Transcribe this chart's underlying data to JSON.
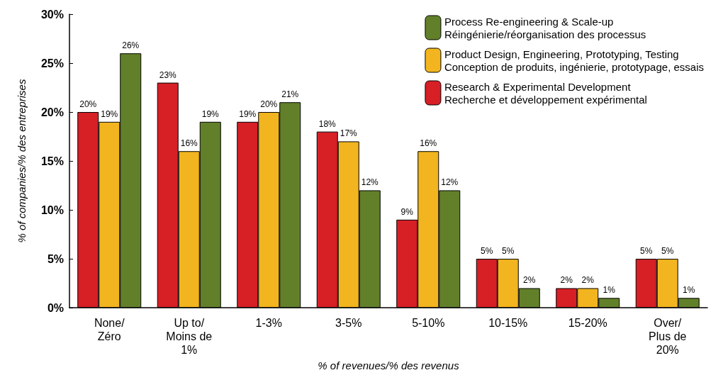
{
  "chart_data": {
    "type": "bar",
    "xlabel": "% of revenues/% des revenus",
    "ylabel": "% of companies/% des entreprises",
    "categories": [
      "None/\nZéro",
      "Up to/\nMoins de\n1%",
      "1-3%",
      "3-5%",
      "5-10%",
      "10-15%",
      "15-20%",
      "Over/\nPlus de\n20%"
    ],
    "series": [
      {
        "name": "Research & Experimental Development\nRecherche et développement expérimental",
        "color": "#d71f26",
        "values": [
          20,
          23,
          19,
          18,
          9,
          5,
          2,
          5
        ],
        "value_labels": [
          "20%",
          "23%",
          "19%",
          "18%",
          "9%",
          "5%",
          "2%",
          "5%"
        ]
      },
      {
        "name": "Product Design, Engineering, Prototyping, Testing\nConception de produits, ingénierie, prototypage, essais",
        "color": "#f2b51f",
        "values": [
          19,
          16,
          20,
          17,
          16,
          5,
          2,
          5
        ],
        "value_labels": [
          "19%",
          "16%",
          "20%",
          "17%",
          "16%",
          "5%",
          "2%",
          "5%"
        ]
      },
      {
        "name": "Process Re-engineering & Scale-up\nRéingénierie/réorganisation des processus",
        "color": "#62802a",
        "values": [
          26,
          19,
          21,
          12,
          12,
          2,
          1,
          1
        ],
        "value_labels": [
          "26%",
          "19%",
          "21%",
          "12%",
          "12%",
          "2%",
          "1%",
          "1%"
        ]
      }
    ],
    "ylim": [
      0,
      30
    ],
    "yticks": [
      {
        "value": 0,
        "label": "0%"
      },
      {
        "value": 5,
        "label": "5%"
      },
      {
        "value": 10,
        "label": "10%"
      },
      {
        "value": 15,
        "label": "15%"
      },
      {
        "value": 20,
        "label": "20%"
      },
      {
        "value": 25,
        "label": "25%"
      },
      {
        "value": 30,
        "label": "30%"
      }
    ],
    "grid": false,
    "legend": "top right"
  }
}
